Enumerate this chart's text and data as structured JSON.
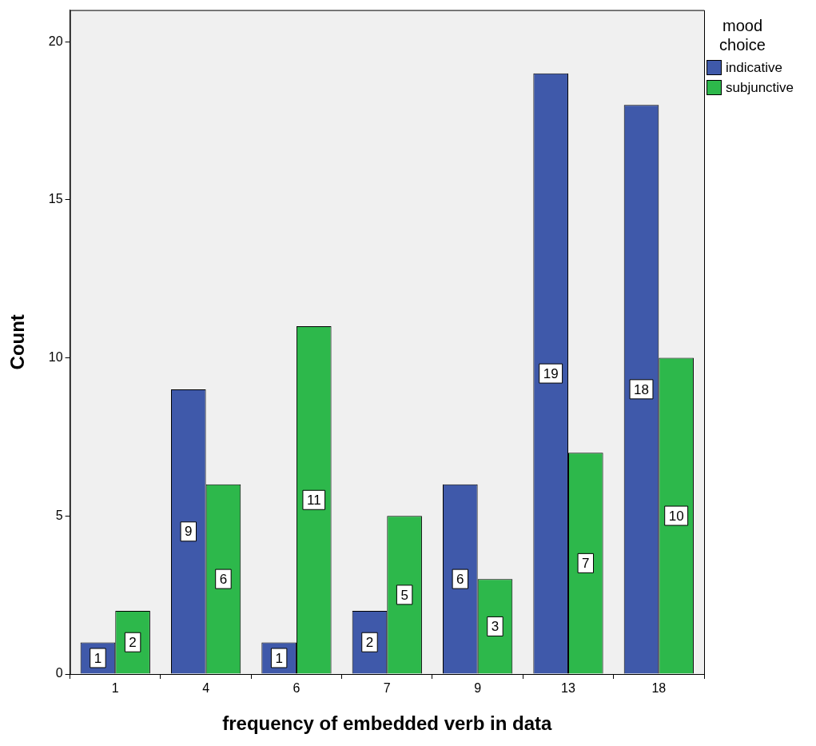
{
  "chart_data": {
    "type": "bar",
    "xlabel": "frequency of embedded verb in data",
    "ylabel": "Count",
    "legend_title": "mood choice",
    "categories": [
      "1",
      "4",
      "6",
      "7",
      "9",
      "13",
      "18"
    ],
    "series": [
      {
        "name": "indicative",
        "color": "#3f59aa",
        "values": [
          1,
          9,
          1,
          2,
          6,
          19,
          18
        ]
      },
      {
        "name": "subjunctive",
        "color": "#2db84b",
        "values": [
          2,
          6,
          11,
          5,
          3,
          7,
          10
        ]
      }
    ],
    "ylim": [
      0,
      21
    ],
    "yticks": [
      0,
      5,
      10,
      15,
      20
    ],
    "grid": false,
    "legend": "top right",
    "data_labels": true
  }
}
